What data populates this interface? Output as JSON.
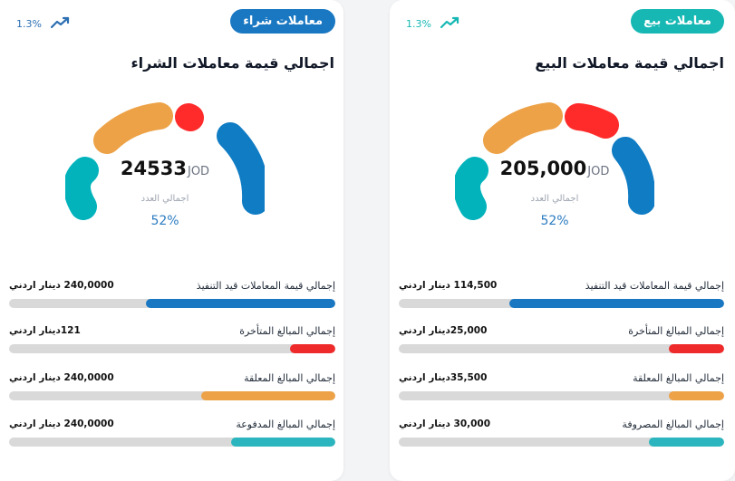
{
  "buy": {
    "badge": "معاملات شراء",
    "trend_percent": "1.3%",
    "title": "اجمالي قيمة معاملات الشراء",
    "gauge": {
      "value": "24533",
      "unit": "JOD",
      "label": "اجمالي العدد",
      "percent": "52%"
    },
    "metrics": [
      {
        "label": "إجمالي قيمة المعاملات قيد التنفيذ",
        "value": "240,0000 دينار اردني",
        "fill": 0.58,
        "color": "#1a78c2"
      },
      {
        "label": "إجمالي المبالغ المتأخرة",
        "value": "121دينار اردني",
        "fill": 0.14,
        "color": "#ef2a2a"
      },
      {
        "label": "إجمالي المبالغ المعلقة",
        "value": "240,0000 دينار اردني",
        "fill": 0.41,
        "color": "#eda247"
      },
      {
        "label": "إجمالي المبالغ المدفوعة",
        "value": "240,0000 دينار اردني",
        "fill": 0.32,
        "color": "#2bb5be"
      }
    ]
  },
  "sell": {
    "badge": "معاملات بيع",
    "trend_percent": "1.3%",
    "title": "اجمالي قيمة معاملات البيع",
    "gauge": {
      "value": "205,000",
      "unit": "JOD",
      "label": "اجمالي العدد",
      "percent": "52%"
    },
    "metrics": [
      {
        "label": "إجمالي قيمة المعاملات قيد التنفيذ",
        "value": "114,500 دينار اردني",
        "fill": 0.66,
        "color": "#1a78c2"
      },
      {
        "label": "إجمالي المبالغ المتأخرة",
        "value": "25,000دينار اردني",
        "fill": 0.17,
        "color": "#ef2a2a"
      },
      {
        "label": "إجمالي المبالغ المعلقة",
        "value": "35,500دينار اردني",
        "fill": 0.17,
        "color": "#eda247"
      },
      {
        "label": "إجمالي المبالغ المصروفة",
        "value": "30,000 دينار اردني",
        "fill": 0.23,
        "color": "#2bb5be"
      }
    ]
  },
  "colors": {
    "buy_badge": "#1a78c2",
    "sell_badge": "#17b8b4",
    "teal": "#02b3bc",
    "orange": "#eda247",
    "red": "#ff2a2a",
    "blue": "#0f7cc4"
  },
  "icons": {
    "trend": "trend-up-icon"
  }
}
